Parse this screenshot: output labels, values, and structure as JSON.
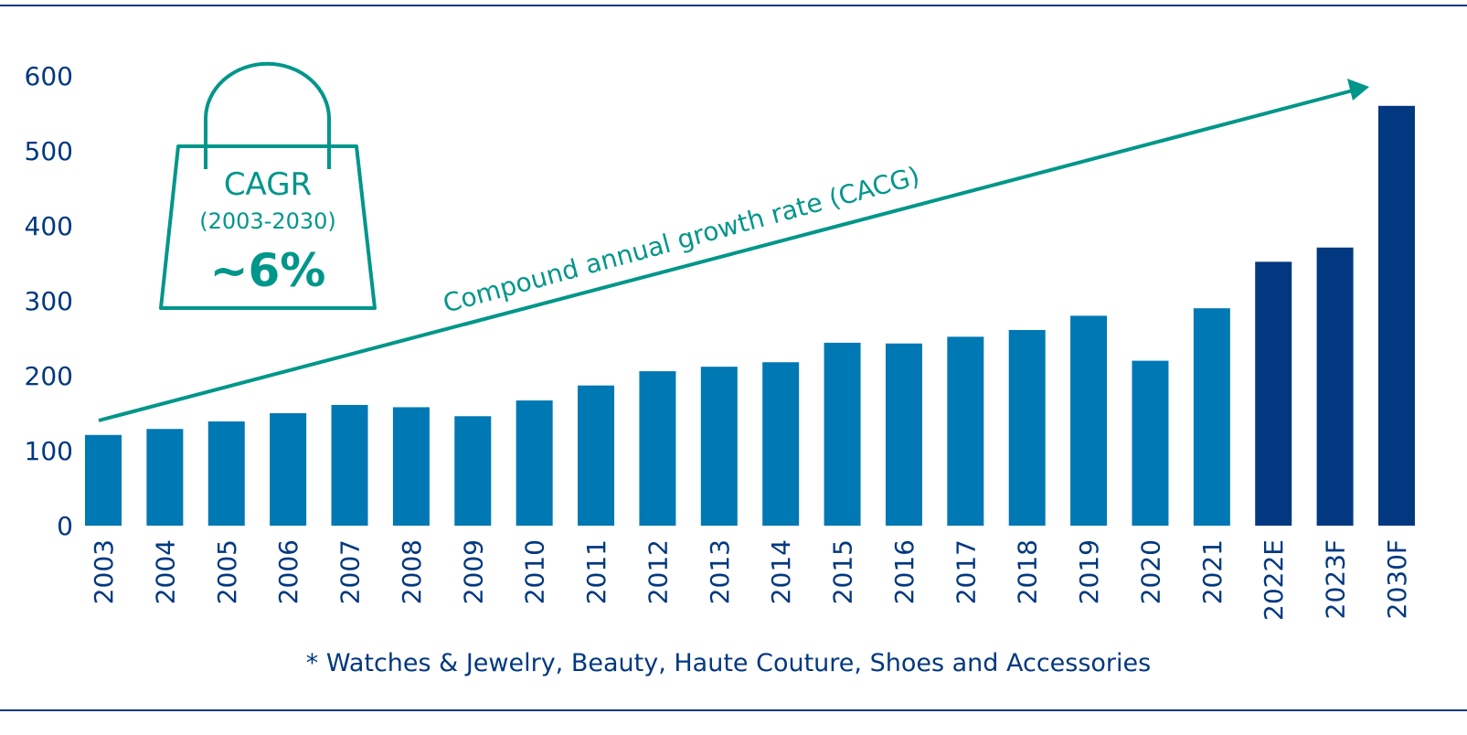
{
  "colors": {
    "actual": "#0078B4",
    "forecast": "#023880",
    "accent": "#00968A",
    "text": "#023880",
    "rule": "#023880"
  },
  "badge": {
    "icon": "shopping-bag-icon",
    "title": "CAGR",
    "period": "(2003-2030)",
    "value": "~6%"
  },
  "arrow_label": "Compound annual growth rate (CACG)",
  "footnote": "* Watches & Jewelry, Beauty, Haute Couture, Shoes and Accessories",
  "chart_data": {
    "type": "bar",
    "title": "",
    "xlabel": "",
    "ylabel": "",
    "ylim": [
      0,
      600
    ],
    "yticks": [
      0,
      100,
      200,
      300,
      400,
      500,
      600
    ],
    "grid": false,
    "categories": [
      "2003",
      "2004",
      "2005",
      "2006",
      "2007",
      "2008",
      "2009",
      "2010",
      "2011",
      "2012",
      "2013",
      "2014",
      "2015",
      "2016",
      "2017",
      "2018",
      "2019",
      "2020",
      "2021",
      "2022E",
      "2023F",
      "2030F"
    ],
    "values": [
      121,
      129,
      139,
      150,
      161,
      158,
      146,
      167,
      187,
      206,
      212,
      218,
      244,
      243,
      252,
      261,
      280,
      220,
      290,
      352,
      371,
      560
    ],
    "forecast_categories": [
      "2022E",
      "2023F",
      "2030F"
    ]
  }
}
